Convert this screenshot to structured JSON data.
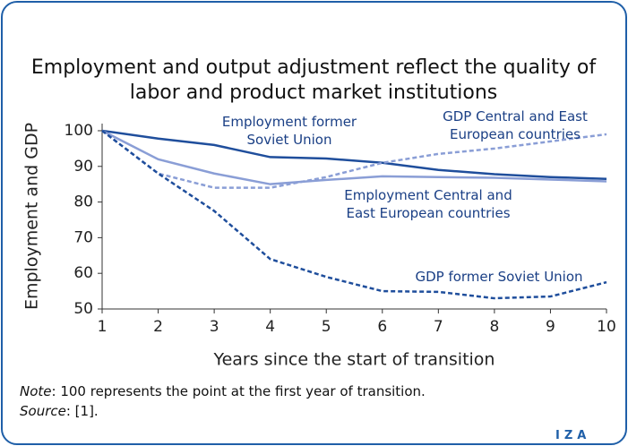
{
  "chart_data": {
    "type": "line",
    "title": "Employment and output adjustment reflect the quality of labor and product market institutions",
    "xlabel": "Years since the start of transition",
    "ylabel": "Employment and GDP",
    "x": [
      1,
      2,
      3,
      4,
      5,
      6,
      7,
      8,
      9,
      10
    ],
    "xlim": [
      1,
      10
    ],
    "xticks": [
      1,
      2,
      3,
      4,
      5,
      6,
      7,
      8,
      9,
      10
    ],
    "ylim": [
      50,
      102
    ],
    "yticks": [
      50,
      60,
      70,
      80,
      90,
      100
    ],
    "series": [
      {
        "name": "Employment former Soviet Union",
        "color": "#1f4e9c",
        "dashed": false,
        "values": [
          100,
          97.8,
          96,
          92.6,
          92.2,
          91,
          89,
          87.8,
          87,
          86.5
        ]
      },
      {
        "name": "Employment Central and East European countries",
        "color": "#8a9ed6",
        "dashed": false,
        "values": [
          100,
          92,
          88,
          85,
          86.2,
          87.2,
          87,
          86.8,
          86.3,
          85.8
        ]
      },
      {
        "name": "GDP Central and East European countries",
        "color": "#8a9ed6",
        "dashed": true,
        "values": [
          100,
          88,
          84,
          84,
          87,
          91,
          93.5,
          95,
          97,
          99
        ]
      },
      {
        "name": "GDP former Soviet Union",
        "color": "#1f4e9c",
        "dashed": true,
        "values": [
          100,
          88,
          77.5,
          64,
          59,
          55,
          54.8,
          53,
          53.5,
          57.5
        ]
      }
    ],
    "note_label": "Note",
    "note": ": 100 represents the point at the first year of transition.",
    "source_label": "Source",
    "source": ": [1].",
    "logo": "IZA"
  }
}
